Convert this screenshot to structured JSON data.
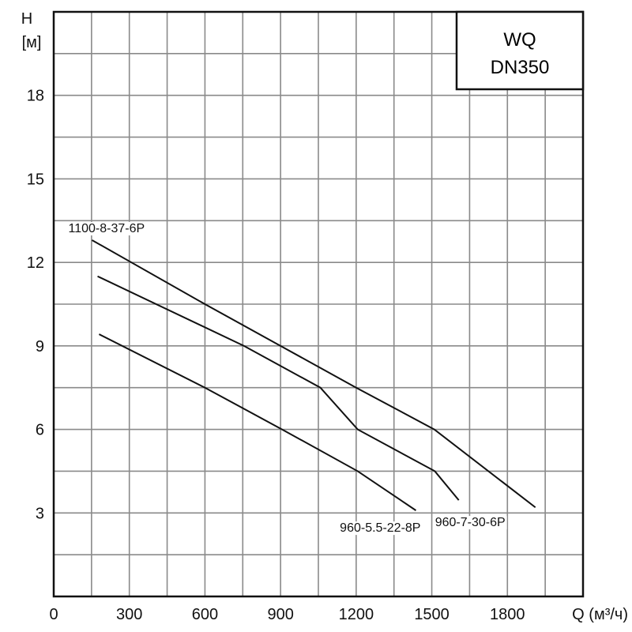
{
  "chart_data": {
    "type": "line",
    "title": "WQ DN350",
    "title_lines": [
      "WQ",
      "DN350"
    ],
    "ylabel_lines": [
      "H",
      "[м]"
    ],
    "xlabel": "Q (м³/ч)",
    "xlim": [
      0,
      2100
    ],
    "ylim": [
      0,
      21
    ],
    "x_ticks": [
      0,
      300,
      600,
      900,
      1200,
      1500,
      1800
    ],
    "y_ticks": [
      3,
      6,
      9,
      12,
      15,
      18
    ],
    "x_grid_step": 150,
    "y_grid_step": 1.5,
    "grid": true,
    "series": [
      {
        "name": "1100-8-37-6P",
        "x": [
          152,
          600,
          900,
          1200,
          1510,
          1911
        ],
        "y": [
          12.8,
          10.5,
          9.0,
          7.5,
          6.0,
          3.2
        ]
      },
      {
        "name": "960-7-30-6P",
        "x": [
          174,
          755,
          1058,
          1206,
          1512,
          1607
        ],
        "y": [
          11.5,
          9.0,
          7.5,
          6.0,
          4.5,
          3.46
        ]
      },
      {
        "name": "960-5.5-22-8P",
        "x": [
          180,
          600,
          906,
          1206,
          1437
        ],
        "y": [
          9.42,
          7.5,
          6.0,
          4.5,
          3.09
        ]
      }
    ]
  }
}
